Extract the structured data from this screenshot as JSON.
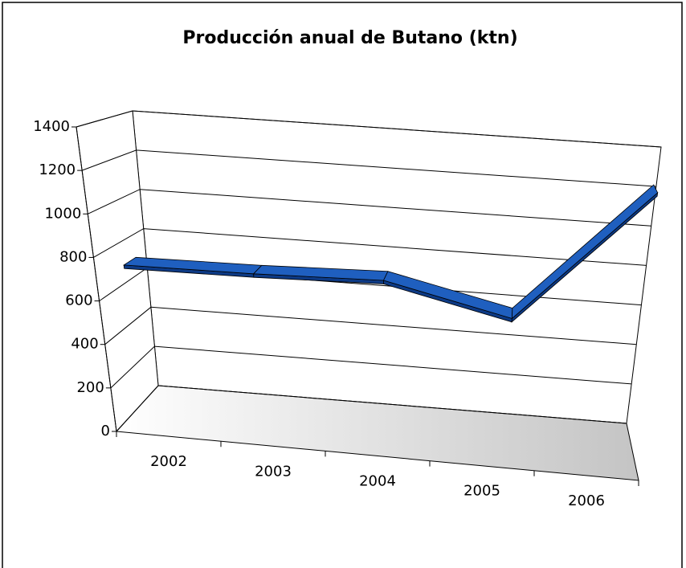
{
  "chart_data": {
    "type": "line",
    "title": "Producción anual de Butano (ktn)",
    "categories": [
      "2002",
      "2003",
      "2004",
      "2005",
      "2006"
    ],
    "values": [
      720,
      730,
      750,
      620,
      1270
    ],
    "color": "#1f5fbf",
    "ylim": [
      0,
      1400
    ],
    "yticks": [
      0,
      200,
      400,
      600,
      800,
      1000,
      1200,
      1400
    ],
    "grid": true
  }
}
